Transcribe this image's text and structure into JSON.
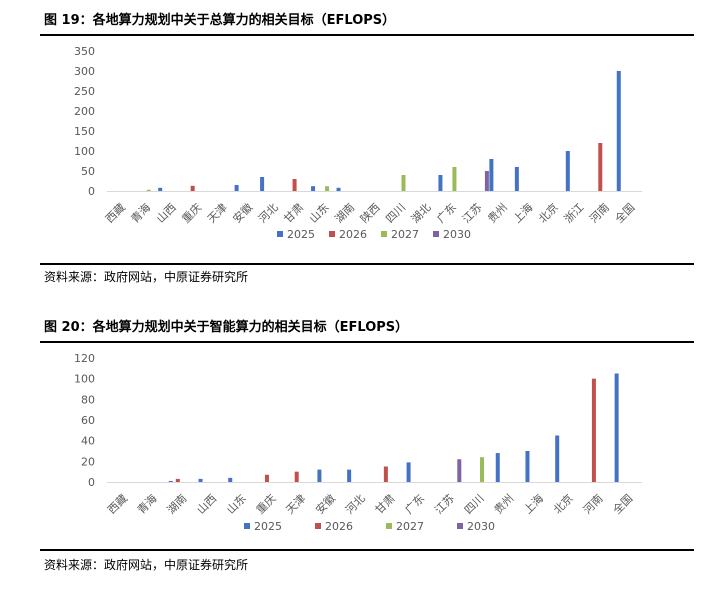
{
  "figures": [
    {
      "title": "图 19：各地算力规划中关于总算力的相关目标（EFLOPS）",
      "source": "资料来源：政府网站，中原证券研究所"
    },
    {
      "title": "图 20：各地算力规划中关于智能算力的相关目标（EFLOPS）",
      "source": "资料来源：政府网站，中原证券研究所"
    }
  ],
  "colors": {
    "2025": "#4472c4",
    "2026": "#c0504d",
    "2027": "#9bbb59",
    "2030": "#8064a2"
  },
  "chart_data": [
    {
      "type": "bar",
      "title": "",
      "legend_position": "bottom",
      "ylim": [
        0,
        350
      ],
      "yticks": [
        0,
        50,
        100,
        150,
        200,
        250,
        300,
        350
      ],
      "grid": false,
      "categories": [
        "西藏",
        "青海",
        "山西",
        "重庆",
        "天津",
        "安徽",
        "河北",
        "甘肃",
        "山东",
        "湖南",
        "陕西",
        "四川",
        "湖北",
        "广东",
        "江苏",
        "贵州",
        "上海",
        "北京",
        "浙江",
        "河南",
        "全国"
      ],
      "series": [
        {
          "name": "2025",
          "values": [
            null,
            null,
            8,
            null,
            null,
            15,
            35,
            null,
            12,
            8,
            null,
            null,
            null,
            40,
            null,
            80,
            60,
            null,
            100,
            null,
            300
          ]
        },
        {
          "name": "2026",
          "values": [
            null,
            null,
            null,
            13,
            null,
            null,
            null,
            30,
            null,
            null,
            null,
            null,
            null,
            null,
            null,
            null,
            null,
            null,
            null,
            120,
            null
          ]
        },
        {
          "name": "2027",
          "values": [
            null,
            3,
            null,
            null,
            null,
            null,
            null,
            null,
            12,
            null,
            null,
            40,
            null,
            60,
            null,
            null,
            null,
            null,
            null,
            null,
            null
          ]
        },
        {
          "name": "2030",
          "values": [
            null,
            null,
            null,
            null,
            null,
            null,
            null,
            null,
            null,
            null,
            null,
            null,
            null,
            null,
            50,
            null,
            null,
            null,
            null,
            null,
            null
          ]
        }
      ]
    },
    {
      "type": "bar",
      "title": "",
      "legend_position": "bottom",
      "ylim": [
        0,
        120
      ],
      "yticks": [
        0,
        20,
        40,
        60,
        80,
        100,
        120
      ],
      "grid": false,
      "categories": [
        "西藏",
        "青海",
        "湖南",
        "山西",
        "山东",
        "重庆",
        "天津",
        "安徽",
        "河北",
        "甘肃",
        "广东",
        "江苏",
        "四川",
        "贵州",
        "上海",
        "北京",
        "河南",
        "全国"
      ],
      "series": [
        {
          "name": "2025",
          "values": [
            null,
            null,
            1,
            3,
            4,
            null,
            null,
            12,
            12,
            null,
            19,
            null,
            null,
            28,
            30,
            45,
            null,
            105
          ]
        },
        {
          "name": "2026",
          "values": [
            null,
            null,
            3,
            null,
            null,
            7,
            10,
            null,
            null,
            15,
            null,
            null,
            null,
            null,
            null,
            null,
            100,
            null
          ]
        },
        {
          "name": "2027",
          "values": [
            null,
            null,
            null,
            null,
            null,
            null,
            null,
            null,
            null,
            null,
            null,
            null,
            24,
            null,
            null,
            null,
            null,
            null
          ]
        },
        {
          "name": "2030",
          "values": [
            null,
            null,
            null,
            null,
            null,
            null,
            null,
            null,
            null,
            null,
            null,
            22,
            null,
            null,
            null,
            null,
            null,
            null
          ]
        }
      ]
    }
  ]
}
